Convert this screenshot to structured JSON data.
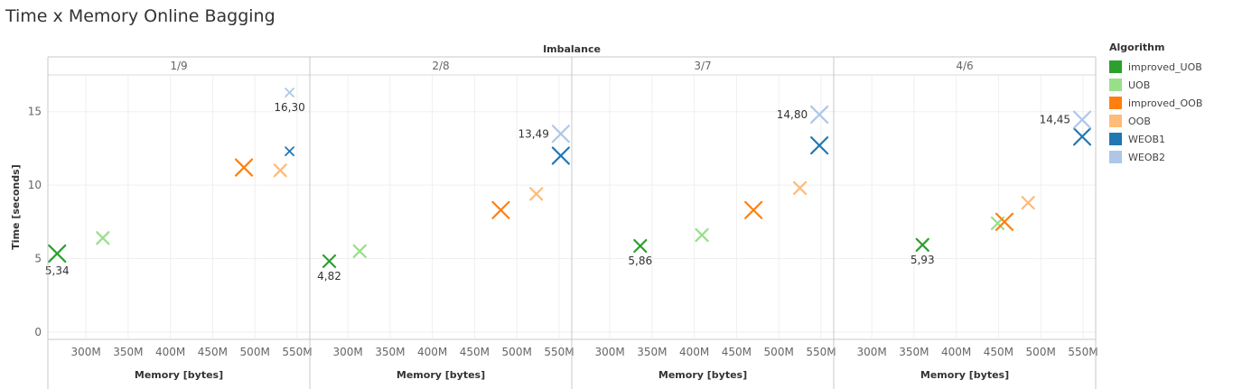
{
  "title": "Time x Memory Online Bagging",
  "legend": {
    "title": "Algorithm",
    "items": [
      {
        "label": "improved_UOB",
        "color": "#2ca02c"
      },
      {
        "label": "UOB",
        "color": "#98df8a"
      },
      {
        "label": "improved_OOB",
        "color": "#ff7f0e"
      },
      {
        "label": "OOB",
        "color": "#ffbb78"
      },
      {
        "label": "WEOB1",
        "color": "#1f77b4"
      },
      {
        "label": "WEOB2",
        "color": "#aec7e8"
      }
    ]
  },
  "chart_data": {
    "type": "scatter",
    "title": "Time x Memory Online Bagging",
    "column_header": "Imbalance",
    "xlabel": "Memory [bytes]",
    "ylabel": "Time [seconds]",
    "xlim": [
      255000000,
      565000000
    ],
    "ylim": [
      -0.5,
      17.5
    ],
    "x_ticks": [
      300000000,
      350000000,
      400000000,
      450000000,
      500000000,
      550000000
    ],
    "x_tick_labels": [
      "300M",
      "350M",
      "400M",
      "450M",
      "500M",
      "550M"
    ],
    "y_ticks": [
      0,
      5,
      10,
      15
    ],
    "y_tick_labels": [
      "0",
      "5",
      "10",
      "15"
    ],
    "grid": true,
    "legend_position": "right",
    "panels": [
      {
        "label": "1/9",
        "points": [
          {
            "algorithm": "improved_UOB",
            "x": 266000000,
            "y": 5.34,
            "label": "5,34",
            "size": "large"
          },
          {
            "algorithm": "UOB",
            "x": 320000000,
            "y": 6.4,
            "size": "medium"
          },
          {
            "algorithm": "improved_OOB",
            "x": 487000000,
            "y": 11.2,
            "size": "large"
          },
          {
            "algorithm": "OOB",
            "x": 530000000,
            "y": 11.0,
            "size": "medium"
          },
          {
            "algorithm": "WEOB1",
            "x": 541000000,
            "y": 12.3,
            "size": "small"
          },
          {
            "algorithm": "WEOB2",
            "x": 541000000,
            "y": 16.3,
            "label": "16,30",
            "size": "small"
          }
        ]
      },
      {
        "label": "2/8",
        "points": [
          {
            "algorithm": "improved_UOB",
            "x": 278000000,
            "y": 4.82,
            "label": "4,82",
            "size": "medium"
          },
          {
            "algorithm": "UOB",
            "x": 314000000,
            "y": 5.5,
            "size": "medium"
          },
          {
            "algorithm": "improved_OOB",
            "x": 481000000,
            "y": 8.3,
            "size": "large"
          },
          {
            "algorithm": "OOB",
            "x": 523000000,
            "y": 9.4,
            "size": "medium"
          },
          {
            "algorithm": "WEOB1",
            "x": 552000000,
            "y": 12.0,
            "size": "large"
          },
          {
            "algorithm": "WEOB2",
            "x": 552000000,
            "y": 13.49,
            "label": "13,49",
            "size": "large"
          }
        ]
      },
      {
        "label": "3/7",
        "points": [
          {
            "algorithm": "improved_UOB",
            "x": 336000000,
            "y": 5.86,
            "label": "5,86",
            "size": "medium"
          },
          {
            "algorithm": "UOB",
            "x": 409000000,
            "y": 6.6,
            "size": "medium"
          },
          {
            "algorithm": "improved_OOB",
            "x": 470000000,
            "y": 8.3,
            "size": "large"
          },
          {
            "algorithm": "OOB",
            "x": 525000000,
            "y": 9.8,
            "size": "medium"
          },
          {
            "algorithm": "WEOB1",
            "x": 548000000,
            "y": 12.7,
            "size": "large"
          },
          {
            "algorithm": "WEOB2",
            "x": 548000000,
            "y": 14.8,
            "label": "14,80",
            "size": "large"
          }
        ]
      },
      {
        "label": "4/6",
        "points": [
          {
            "algorithm": "improved_UOB",
            "x": 360000000,
            "y": 5.93,
            "label": "5,93",
            "size": "medium"
          },
          {
            "algorithm": "UOB",
            "x": 449000000,
            "y": 7.4,
            "size": "medium"
          },
          {
            "algorithm": "improved_OOB",
            "x": 457000000,
            "y": 7.5,
            "size": "large"
          },
          {
            "algorithm": "OOB",
            "x": 485000000,
            "y": 8.8,
            "size": "medium"
          },
          {
            "algorithm": "WEOB1",
            "x": 549000000,
            "y": 13.3,
            "size": "large"
          },
          {
            "algorithm": "WEOB2",
            "x": 549000000,
            "y": 14.45,
            "label": "14,45",
            "size": "large"
          }
        ]
      }
    ]
  }
}
